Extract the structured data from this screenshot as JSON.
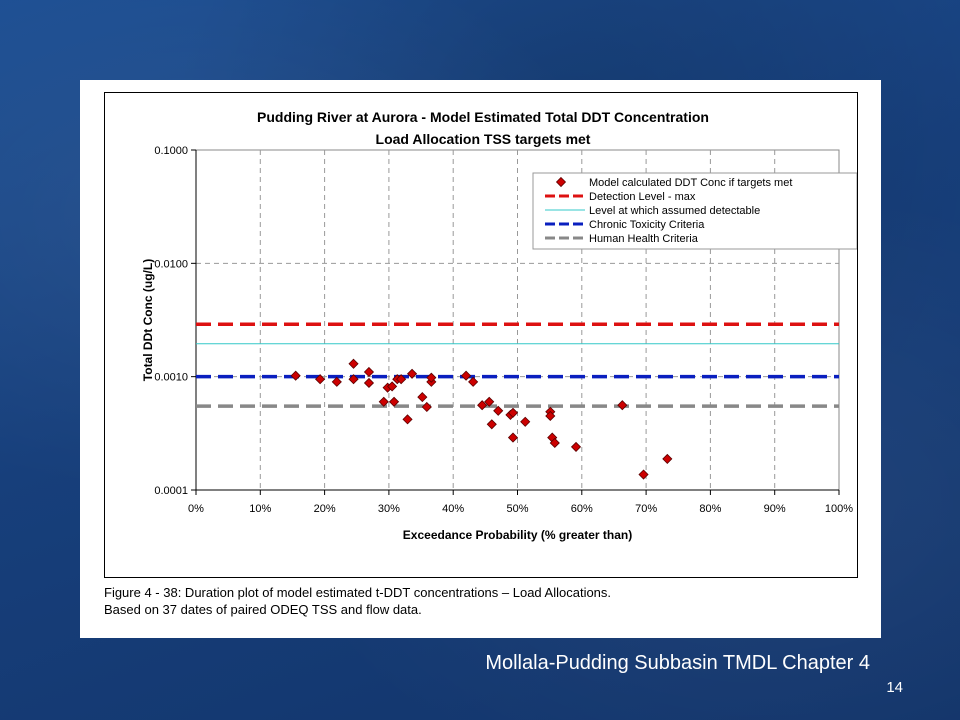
{
  "caption": {
    "line1": "Figure 4 - 38:  Duration plot of model estimated t-DDT concentrations – Load Allocations.",
    "line2": "Based on 37 dates of paired ODEQ TSS and flow data."
  },
  "footer": {
    "title": "Mollala-Pudding Subbasin TMDL   Chapter 4",
    "page": "14"
  },
  "chart_data": {
    "type": "scatter",
    "title": "Pudding River at Aurora - Model Estimated Total DDT Concentration",
    "subtitle": "Load Allocation TSS targets met",
    "xlabel": "Exceedance Probability (% greater than)",
    "ylabel": "Total DDt Conc (ug/L)",
    "xlim": [
      0,
      100
    ],
    "ylim": [
      0.0001,
      0.1
    ],
    "y_scale": "log",
    "grid": true,
    "legend_position": "top-right",
    "x_ticks": [
      "0%",
      "10%",
      "20%",
      "30%",
      "40%",
      "50%",
      "60%",
      "70%",
      "80%",
      "90%",
      "100%"
    ],
    "y_ticks": [
      {
        "value": 0.1,
        "label": "0.1000"
      },
      {
        "value": 0.01,
        "label": "0.0100"
      },
      {
        "value": 0.001,
        "label": "0.0010"
      },
      {
        "value": 0.0001,
        "label": "0.0001"
      }
    ],
    "series": [
      {
        "name": "Model calculated DDT Conc if targets met",
        "kind": "points",
        "color": "#cc0000",
        "points": [
          [
            15.5,
            0.00102
          ],
          [
            19.3,
            0.00095
          ],
          [
            21.9,
            0.0009
          ],
          [
            24.5,
            0.0013
          ],
          [
            24.5,
            0.00095
          ],
          [
            26.9,
            0.0011
          ],
          [
            26.9,
            0.00088
          ],
          [
            29.2,
            0.0006
          ],
          [
            29.8,
            0.0008
          ],
          [
            30.5,
            0.00082
          ],
          [
            30.8,
            0.0006
          ],
          [
            31.3,
            0.00095
          ],
          [
            31.9,
            0.00095
          ],
          [
            32.9,
            0.00042
          ],
          [
            33.6,
            0.00106
          ],
          [
            35.2,
            0.00066
          ],
          [
            35.9,
            0.00054
          ],
          [
            36.6,
            0.0009
          ],
          [
            36.6,
            0.00098
          ],
          [
            42.0,
            0.00102
          ],
          [
            43.1,
            0.0009
          ],
          [
            44.5,
            0.00056
          ],
          [
            45.6,
            0.0006
          ],
          [
            46.0,
            0.00038
          ],
          [
            47.0,
            0.0005
          ],
          [
            48.9,
            0.00046
          ],
          [
            49.3,
            0.00048
          ],
          [
            49.3,
            0.00029
          ],
          [
            51.2,
            0.0004
          ],
          [
            55.1,
            0.00049
          ],
          [
            55.1,
            0.00045
          ],
          [
            55.4,
            0.00029
          ],
          [
            55.8,
            0.00026
          ],
          [
            59.1,
            0.00024
          ],
          [
            66.3,
            0.00056
          ],
          [
            69.6,
            0.000137
          ],
          [
            73.3,
            0.000188
          ]
        ]
      },
      {
        "name": "Detection Level - max",
        "kind": "hline",
        "y": 0.0029,
        "color": "#dd1111",
        "style": "dashed-thick"
      },
      {
        "name": "Level at which assumed detectable",
        "kind": "hline",
        "y": 0.00195,
        "color": "#33c8c8",
        "style": "solid-thin"
      },
      {
        "name": "Chronic Toxicity Criteria",
        "kind": "hline",
        "y": 0.001,
        "color": "#0a1fbf",
        "style": "dashed-thick"
      },
      {
        "name": "Human Health Criteria",
        "kind": "hline",
        "y": 0.00055,
        "color": "#888888",
        "style": "dashed-thick"
      }
    ]
  }
}
